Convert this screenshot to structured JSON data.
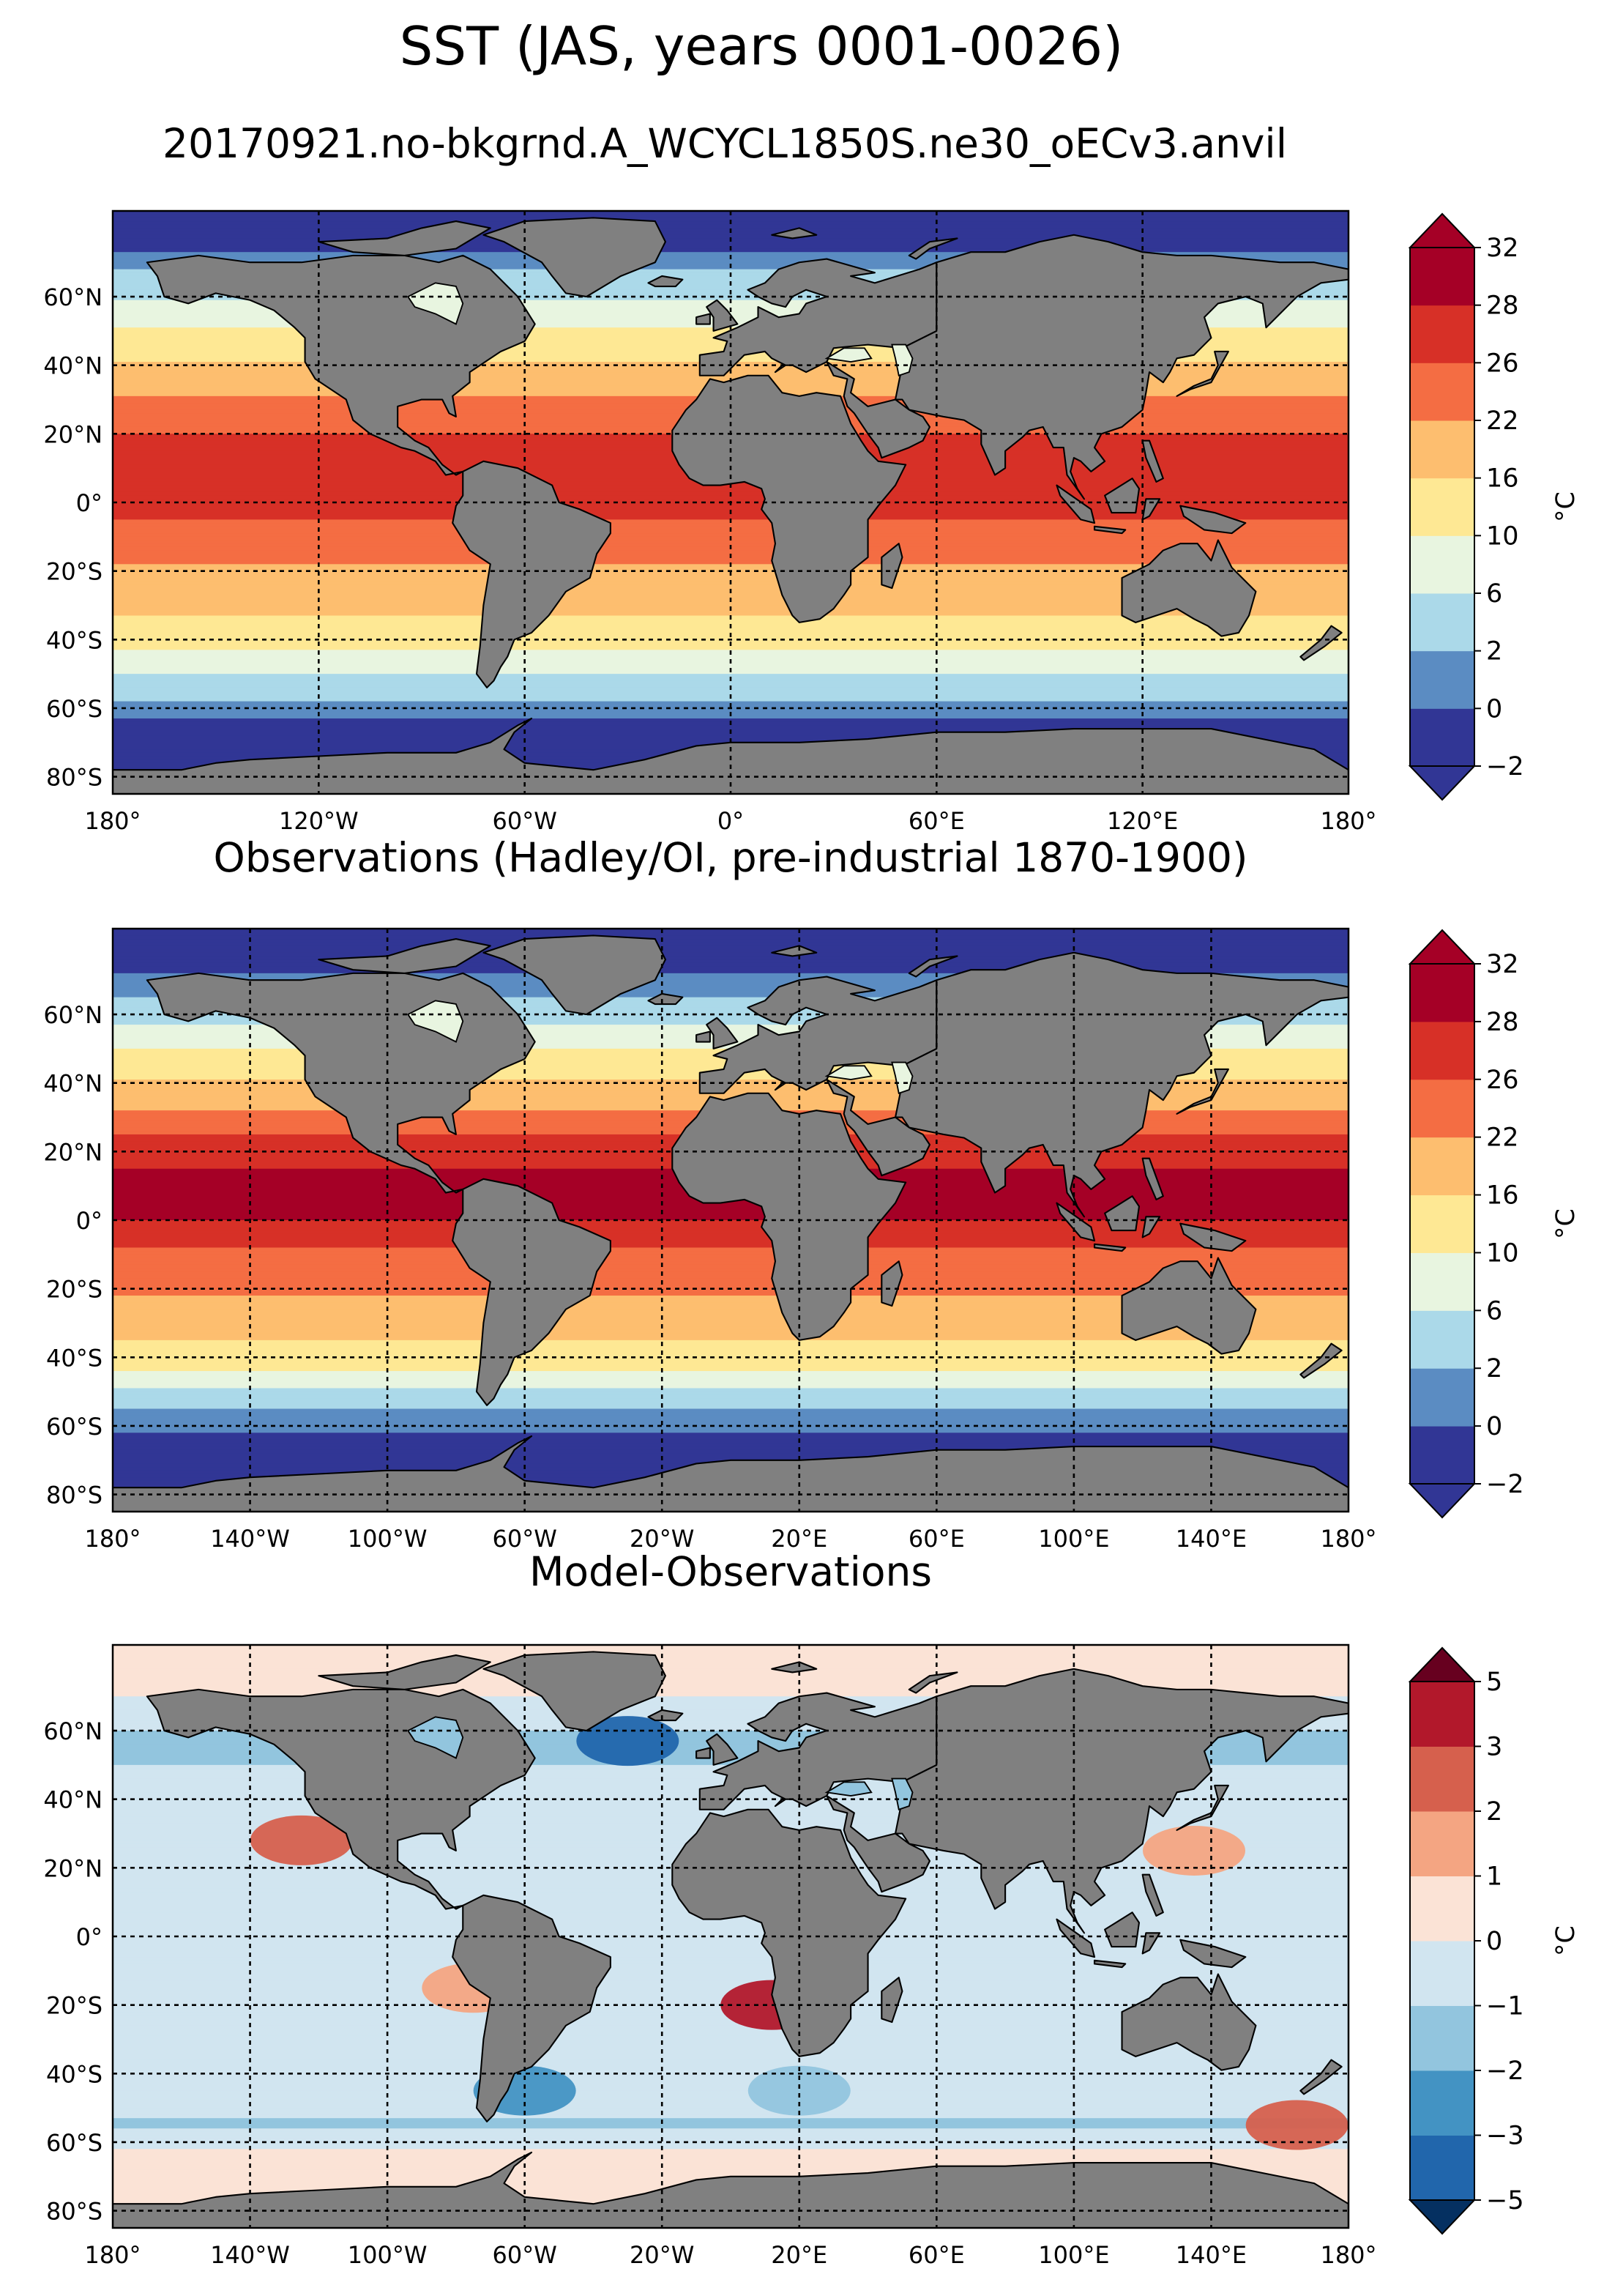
{
  "figure": {
    "title": "SST (JAS, years 0001-0026)",
    "subtitle": "20170921.no-bkgrnd.A_WCYCL1850S.ne30_oECv3.anvil"
  },
  "colors": {
    "land": "#808080",
    "coast": "#000000",
    "grid": "#000000",
    "sst_scale": [
      "#313695",
      "#5b8cc2",
      "#abd9e9",
      "#e8f5e0",
      "#fee894",
      "#fdbe6f",
      "#f46d43",
      "#d73027",
      "#a50026"
    ],
    "sst_under": "#313695",
    "sst_over": "#a50026",
    "diff_scale": [
      "#2166ac",
      "#4393c3",
      "#92c5de",
      "#d1e5f0",
      "#fbe3d6",
      "#f4a582",
      "#d6604d",
      "#b2182b"
    ],
    "diff_under": "#053061",
    "diff_over": "#67001f"
  },
  "chart_data": [
    {
      "type": "heatmap",
      "panel": "model",
      "title": "",
      "variable": "SST",
      "projection": "equirectangular",
      "xlim": [
        -180,
        180
      ],
      "ylim": [
        -85,
        85
      ],
      "x_ticks": [
        -180,
        -120,
        -60,
        0,
        60,
        120,
        180
      ],
      "x_tick_labels": [
        "180°",
        "120°W",
        "60°W",
        "0°",
        "60°E",
        "120°E",
        "180°"
      ],
      "y_ticks": [
        -80,
        -60,
        -40,
        -20,
        0,
        20,
        40,
        60
      ],
      "y_tick_labels": [
        "80°S",
        "60°S",
        "40°S",
        "20°S",
        "0°",
        "20°N",
        "40°N",
        "60°N"
      ],
      "grid": true,
      "colorbar": {
        "levels": [
          -2,
          0,
          2,
          6,
          10,
          16,
          22,
          26,
          28,
          32
        ],
        "tick_labels": [
          "−2",
          "0",
          "2",
          "6",
          "10",
          "16",
          "22",
          "26",
          "28",
          "32"
        ],
        "unit": "°C",
        "extend": "both"
      },
      "zonal_profile": {
        "lat": [
          85,
          75,
          65,
          55,
          45,
          35,
          25,
          15,
          5,
          -5,
          -15,
          -25,
          -35,
          -45,
          -55,
          -65,
          -75,
          -85
        ],
        "value_degC": [
          -1.8,
          -1,
          3,
          8,
          13,
          20,
          25,
          27,
          28,
          26,
          23,
          20,
          15,
          9,
          3,
          -1,
          -1.8,
          -1.8
        ]
      }
    },
    {
      "type": "heatmap",
      "panel": "observations",
      "title": "Observations (Hadley/OI, pre-industrial 1870-1900)",
      "variable": "SST",
      "projection": "equirectangular",
      "xlim": [
        -180,
        180
      ],
      "ylim": [
        -85,
        85
      ],
      "x_ticks": [
        -180,
        -140,
        -100,
        -60,
        -20,
        20,
        60,
        100,
        140,
        180
      ],
      "x_tick_labels": [
        "180°",
        "140°W",
        "100°W",
        "60°W",
        "20°W",
        "20°E",
        "60°E",
        "100°E",
        "140°E",
        "180°"
      ],
      "y_ticks": [
        -80,
        -60,
        -40,
        -20,
        0,
        20,
        40,
        60
      ],
      "y_tick_labels": [
        "80°S",
        "60°S",
        "40°S",
        "20°S",
        "0°",
        "20°N",
        "40°N",
        "60°N"
      ],
      "grid": true,
      "colorbar": {
        "levels": [
          -2,
          0,
          2,
          6,
          10,
          16,
          22,
          26,
          28,
          32
        ],
        "tick_labels": [
          "−2",
          "0",
          "2",
          "6",
          "10",
          "16",
          "22",
          "26",
          "28",
          "32"
        ],
        "unit": "°C",
        "extend": "both"
      },
      "zonal_profile": {
        "lat": [
          85,
          75,
          65,
          55,
          45,
          35,
          25,
          15,
          5,
          -5,
          -15,
          -25,
          -35,
          -45,
          -55,
          -65,
          -75,
          -85
        ],
        "value_degC": [
          -1.8,
          -1,
          2,
          7,
          13,
          20,
          26,
          28,
          29,
          27,
          24,
          21,
          16,
          9,
          2,
          -1,
          -1.8,
          -1.8
        ]
      }
    },
    {
      "type": "heatmap",
      "panel": "difference",
      "title": "Model-Observations",
      "variable": "SST difference",
      "projection": "equirectangular",
      "xlim": [
        -180,
        180
      ],
      "ylim": [
        -85,
        85
      ],
      "x_ticks": [
        -180,
        -140,
        -100,
        -60,
        -20,
        20,
        60,
        100,
        140,
        180
      ],
      "x_tick_labels": [
        "180°",
        "140°W",
        "100°W",
        "60°W",
        "20°W",
        "20°E",
        "60°E",
        "100°E",
        "140°E",
        "180°"
      ],
      "y_ticks": [
        -80,
        -60,
        -40,
        -20,
        0,
        20,
        40,
        60
      ],
      "y_tick_labels": [
        "80°S",
        "60°S",
        "40°S",
        "20°S",
        "0°",
        "20°N",
        "40°N",
        "60°N"
      ],
      "grid": true,
      "colorbar": {
        "levels": [
          -5,
          -3,
          -2,
          -1,
          0,
          1,
          2,
          3,
          5
        ],
        "tick_labels": [
          "−5",
          "−3",
          "−2",
          "−1",
          "0",
          "1",
          "2",
          "3",
          "5"
        ],
        "unit": "°C",
        "extend": "both"
      },
      "zonal_profile": {
        "lat": [
          85,
          75,
          65,
          55,
          45,
          35,
          25,
          15,
          5,
          -5,
          -15,
          -25,
          -35,
          -45,
          -55,
          -65,
          -75,
          -85
        ],
        "value_degC": [
          0.5,
          0.5,
          -0.5,
          -1.5,
          -0.5,
          -0.3,
          -0.3,
          -0.3,
          -0.3,
          -0.5,
          -0.5,
          -0.5,
          -0.5,
          -0.3,
          -1.2,
          0.5,
          0.5,
          0.5
        ]
      },
      "anomalies": [
        {
          "lon": -30,
          "lat": 57,
          "value_degC": -4
        },
        {
          "lon": -125,
          "lat": 28,
          "value_degC": 2.5
        },
        {
          "lon": 12,
          "lat": -20,
          "value_degC": 3
        },
        {
          "lon": -75,
          "lat": -15,
          "value_degC": 1.5
        },
        {
          "lon": 135,
          "lat": 25,
          "value_degC": 1.5
        },
        {
          "lon": -60,
          "lat": -45,
          "value_degC": -2.5
        },
        {
          "lon": 20,
          "lat": -45,
          "value_degC": -2
        },
        {
          "lon": 165,
          "lat": -55,
          "value_degC": 2
        }
      ]
    }
  ]
}
